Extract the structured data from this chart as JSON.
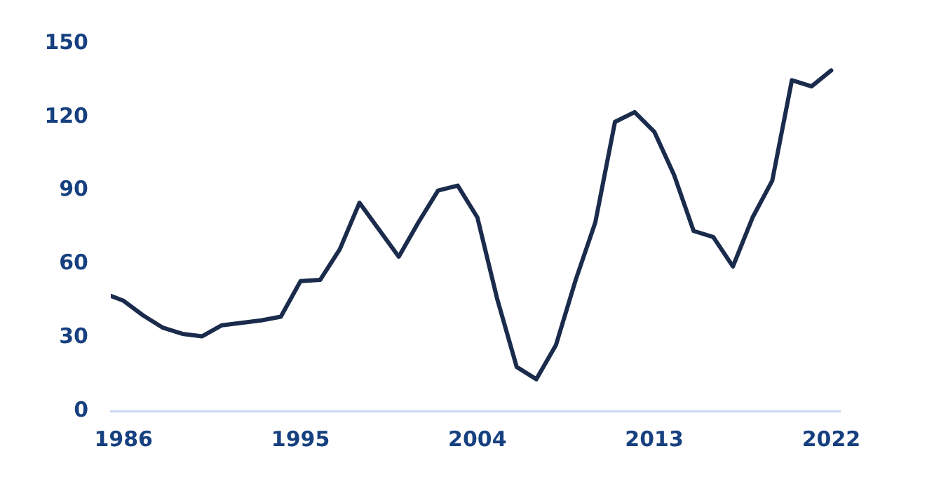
{
  "chart_data": {
    "type": "line",
    "x": [
      1985.35,
      1986,
      1987,
      1988,
      1989,
      1990,
      1991,
      1992,
      1993,
      1994,
      1995,
      1996,
      1997,
      1998,
      1999,
      2000,
      2001,
      2002,
      2003,
      2004,
      2005,
      2006,
      2007,
      2008,
      2009,
      2010,
      2011,
      2012,
      2013,
      2014,
      2015,
      2016,
      2017,
      2018,
      2019,
      2020,
      2021,
      2022
    ],
    "series": [
      {
        "color": "#1a2b4c",
        "values": [
          47,
          45,
          39,
          34,
          31.5,
          30.5,
          35,
          36,
          37,
          38.5,
          53,
          53.5,
          66,
          85,
          74,
          63,
          77,
          90,
          92,
          79,
          46,
          18,
          13,
          27,
          53.5,
          77,
          118,
          122,
          114,
          96.5,
          73.5,
          71,
          59,
          79,
          94,
          135,
          132.5,
          139
        ]
      }
    ],
    "xlim": [
      1985.35,
      2022.45
    ],
    "xticks": [
      1986,
      1995,
      2004,
      2013,
      2022
    ],
    "ylim": [
      0,
      150
    ],
    "yticks": [
      0,
      30,
      60,
      90,
      120,
      150
    ],
    "grid": false,
    "legend": false,
    "marker": "none",
    "line_style": "solid"
  }
}
